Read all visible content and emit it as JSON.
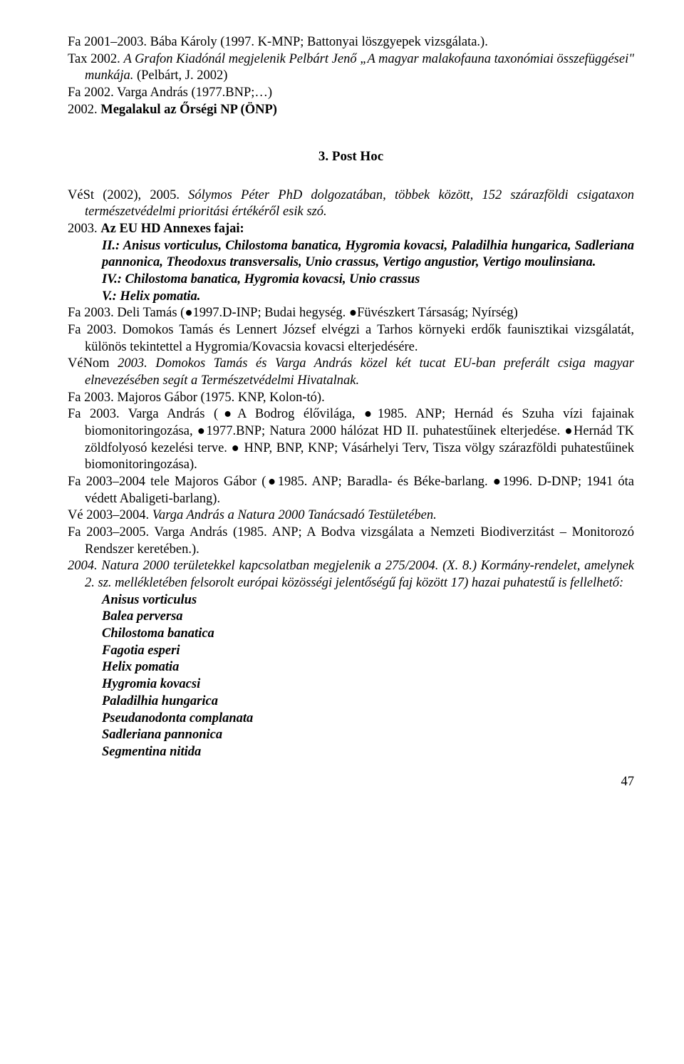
{
  "p1a": "Fa 2001–2003. Bába Károly (1997. K-MNP; Battonyai löszgyepek vizsgálata.).",
  "p1b_pre": "Tax 2002. ",
  "p1b_it": "A Grafon Kiadónál megjelenik Pelbárt Jenő „A magyar malakofauna taxonómiai összefüggései\" munkája.",
  "p1b_post": " (Pelbárt, J. 2002)",
  "p2": "Fa 2002. Varga András (1977.BNP;…)",
  "p3_pre": "2002. ",
  "p3_b": "Megalakul az Őrségi NP (ÖNP)",
  "sec": "3. Post Hoc",
  "p4_pre": "VéSt (2002), 2005. ",
  "p4_it": "Sólymos Péter PhD dolgozatában, többek között, 152 szárazföldi csigataxon természetvédelmi prioritási értékéről esik szó.",
  "p5_pre": "2003. ",
  "p5_b": "Az EU HD Annexes fajai:",
  "p6": "II.: Anisus vorticulus, Chilostoma banatica, Hygromia kovacsi, Paladilhia hungarica, Sadleriana pannonica, Theodoxus transversalis, Unio crassus, Vertigo angustior, Vertigo moulinsiana.",
  "p7_pre": "IV.: ",
  "p7_b": "Chilostoma banatica, Hygromia kovacsi",
  "p7_post": ", Unio crassus",
  "p8": "V.: Helix pomatia.",
  "p9": "Fa 2003. Deli Tamás (●1997.D-INP; Budai hegység. ●Füvészkert Társaság; Nyírség)",
  "p10": "Fa 2003. Domokos Tamás és Lennert József elvégzi a Tarhos környeki erdők faunisztikai vizsgálatát, különös tekintettel a Hygromia/Kovacsia kovacsi elterjedésére.",
  "p11_pre": "VéNom ",
  "p11_it1": "2003.",
  "p11_it2": " Domokos Tamás és Varga András közel két tucat EU-ban preferált csiga magyar elnevezésében segít a Természetvédelmi Hivatalnak.",
  "p12": "Fa 2003. Majoros Gábor (1975. KNP, Kolon-tó).",
  "p13": "Fa 2003. Varga András (●A Bodrog élővilága, ●1985. ANP; Hernád és Szuha vízi fajainak biomonitoringozása, ●1977.BNP; Natura 2000 hálózat HD II. puhatestűinek elterjedése. ●Hernád TK zöldfolyosó kezelési terve. ● HNP, BNP, KNP; Vásárhelyi Terv, Tisza völgy szárazföldi puhatestűinek biomonitoringozása).",
  "p14": "Fa 2003–2004 tele Majoros Gábor (●1985. ANP; Baradla- és Béke-barlang. ●1996. D-DNP; 1941 óta védett Abaligeti-barlang).",
  "p15_pre": "Vé 2003–2004. ",
  "p15_it": "Varga András a Natura 2000 Tanácsadó Testületében.",
  "p16": "Fa 2003–2005. Varga András (1985. ANP; A Bodva vizsgálata a Nemzeti Biodiverzitást – Monitorozó Rendszer keretében.).",
  "p17": "2004. Natura 2000 területekkel kapcsolatban megjelenik a 275/2004. (X. 8.) Kormány-rendelet, amelynek 2. sz. mellékletében felsorolt európai közösségi jelentőségű faj között 17) hazai puhatestű is fellelhető:",
  "sp1": "Anisus vorticulus",
  "sp2": "Balea perversa",
  "sp3": "Chilostoma banatica",
  "sp4": "Fagotia esperi",
  "sp5": "Helix pomatia",
  "sp6": "Hygromia kovacsi",
  "sp7": "Paladilhia hungarica",
  "sp8": "Pseudanodonta complanata",
  "sp9": "Sadleriana pannonica",
  "sp10": "Segmentina nitida",
  "pagenum": "47"
}
